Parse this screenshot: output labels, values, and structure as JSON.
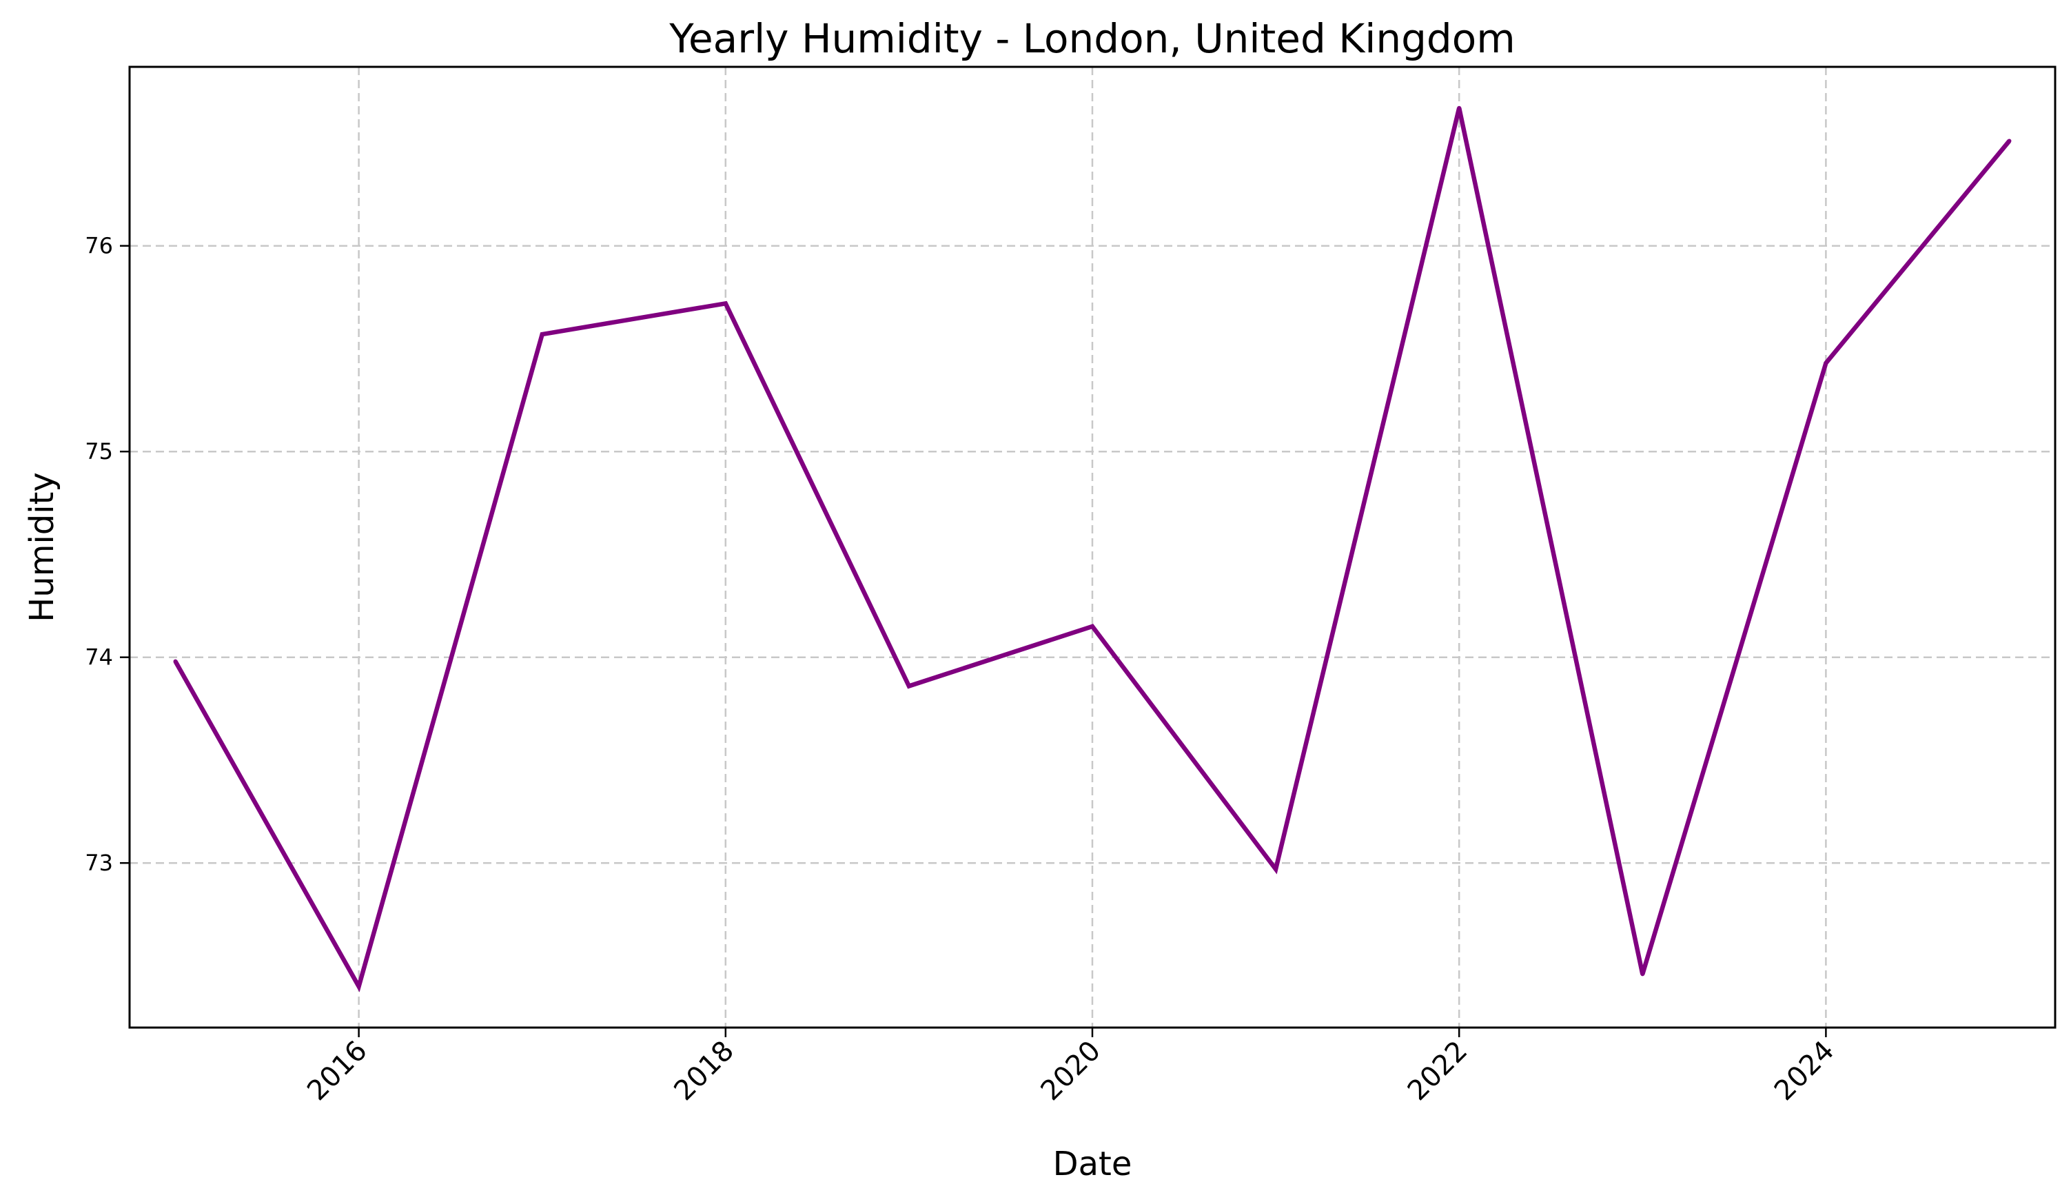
{
  "chart_data": {
    "type": "line",
    "title": "Yearly Humidity - London, United Kingdom",
    "xlabel": "Date",
    "ylabel": "Humidity",
    "x": [
      2015,
      2016,
      2017,
      2018,
      2019,
      2020,
      2021,
      2022,
      2023,
      2024,
      2025
    ],
    "series": [
      {
        "values": [
          73.98,
          72.4,
          75.57,
          75.72,
          73.86,
          74.15,
          72.97,
          76.67,
          72.46,
          75.43,
          76.51
        ],
        "color": "#800080"
      }
    ],
    "xticks": [
      2016,
      2018,
      2020,
      2022,
      2024
    ],
    "xtick_labels": [
      "2016",
      "2018",
      "2020",
      "2022",
      "2024"
    ],
    "xtick_rotation_deg": 45,
    "yticks": [
      73,
      74,
      75,
      76
    ],
    "ytick_labels": [
      "73",
      "74",
      "75",
      "76"
    ],
    "xlim": [
      2014.75,
      2025.25
    ],
    "ylim": [
      72.2,
      76.87
    ],
    "grid": true,
    "grid_style": "dashed",
    "legend": "none"
  }
}
